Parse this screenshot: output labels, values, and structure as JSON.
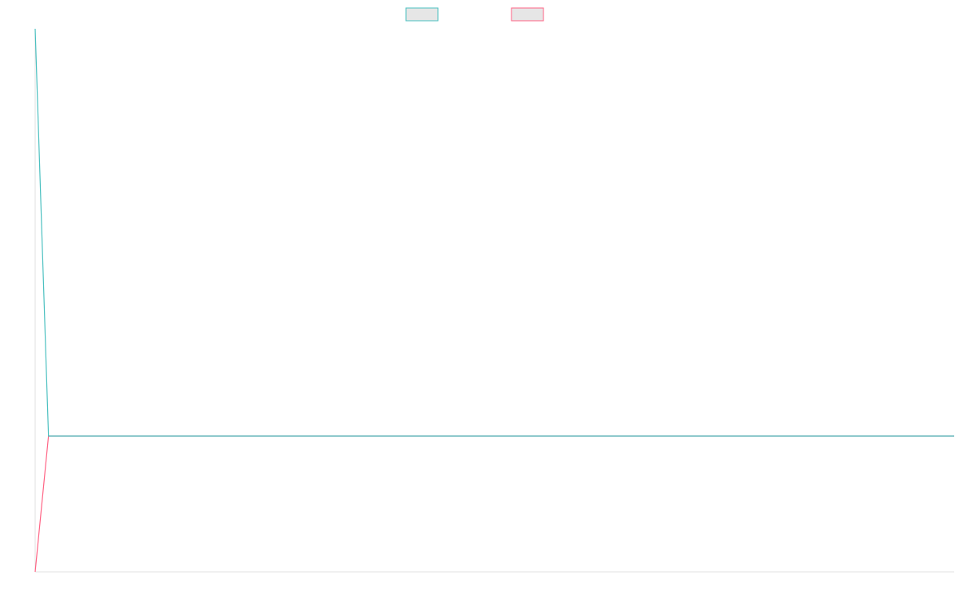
{
  "chart_data": {
    "type": "line",
    "title": "",
    "xlabel": "",
    "ylabel": "",
    "legend_position": "top-center",
    "grid": false,
    "x": [
      0,
      1,
      2,
      3,
      4,
      5,
      6,
      7,
      8,
      9,
      10,
      11,
      12,
      13,
      14,
      15,
      16,
      17,
      18,
      19,
      20,
      21,
      22,
      23,
      24,
      25,
      26,
      27,
      28,
      29,
      30,
      31,
      32,
      33,
      34,
      35,
      36,
      37,
      38,
      39,
      40,
      41,
      42,
      43,
      44,
      45,
      46,
      47,
      48,
      49,
      50,
      51,
      52,
      53,
      54,
      55,
      56,
      57,
      58,
      59,
      60,
      61,
      62,
      63,
      64,
      65,
      66,
      67,
      68,
      69
    ],
    "xlim": [
      0,
      69
    ],
    "ylim": [
      -1,
      3
    ],
    "series": [
      {
        "name": "",
        "color": "#4bc0c0",
        "legend_fill": "#e6e6e6",
        "values": [
          3,
          0,
          0,
          0,
          0,
          0,
          0,
          0,
          0,
          0,
          0,
          0,
          0,
          0,
          0,
          0,
          0,
          0,
          0,
          0,
          0,
          0,
          0,
          0,
          0,
          0,
          0,
          0,
          0,
          0,
          0,
          0,
          0,
          0,
          0,
          0,
          0,
          0,
          0,
          0,
          0,
          0,
          0,
          0,
          0,
          0,
          0,
          0,
          0,
          0,
          0,
          0,
          0,
          0,
          0,
          0,
          0,
          0,
          0,
          0,
          0,
          0,
          0,
          0,
          0,
          0,
          0,
          0,
          0,
          0
        ]
      },
      {
        "name": "",
        "color": "#ff6384",
        "legend_fill": "#e6e6e6",
        "values": [
          -1,
          0,
          0,
          0,
          0,
          0,
          0,
          0,
          0,
          0,
          0,
          0,
          0,
          0,
          0,
          0,
          0,
          0,
          0,
          0,
          0,
          0,
          0,
          0,
          0,
          0,
          0,
          0,
          0,
          0,
          0,
          0,
          0,
          0,
          0,
          0,
          0,
          0,
          0,
          0,
          0,
          0,
          0,
          0,
          0,
          0,
          0,
          0,
          0,
          0,
          0,
          0,
          0,
          0,
          0,
          0,
          0,
          0,
          0,
          0,
          0,
          0,
          0,
          0,
          0,
          0,
          0,
          0,
          0,
          0
        ]
      }
    ],
    "axis_color": "#e0e0e0"
  }
}
